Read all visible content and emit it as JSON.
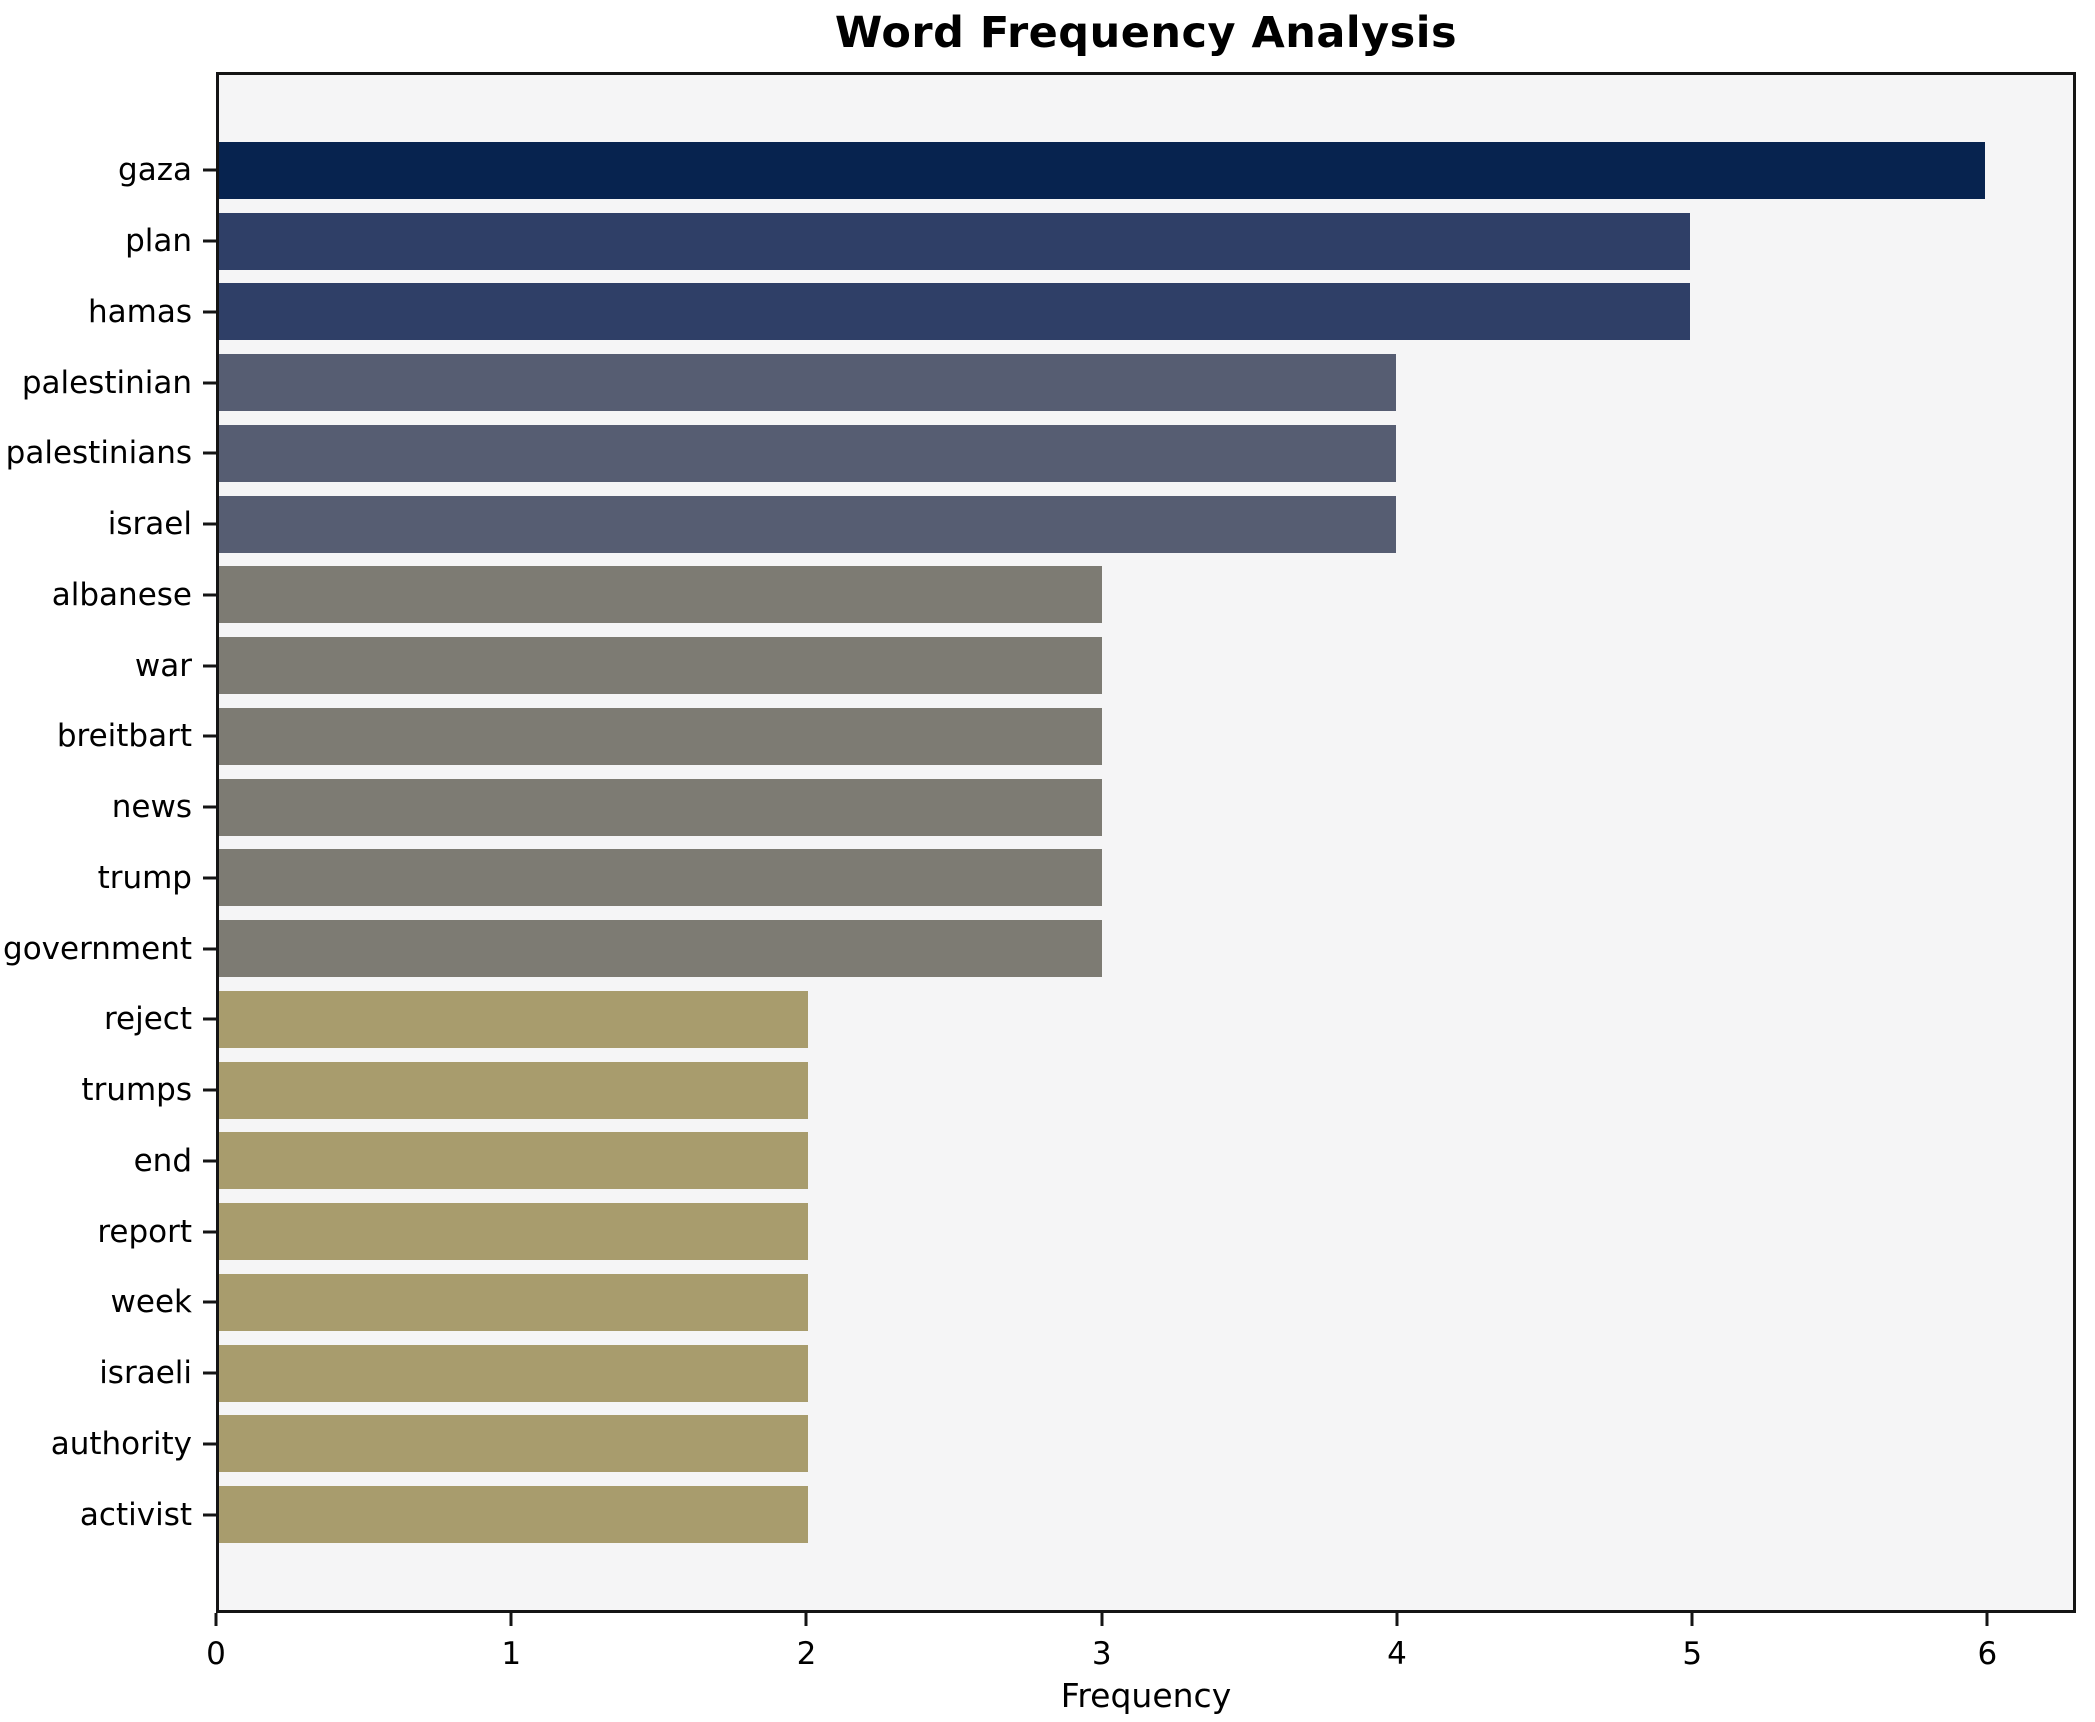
{
  "chart_data": {
    "type": "bar",
    "orientation": "horizontal",
    "title": "Word Frequency Analysis",
    "xlabel": "Frequency",
    "ylabel": "",
    "categories": [
      "gaza",
      "plan",
      "hamas",
      "palestinian",
      "palestinians",
      "israel",
      "albanese",
      "war",
      "breitbart",
      "news",
      "trump",
      "government",
      "reject",
      "trumps",
      "end",
      "report",
      "week",
      "israeli",
      "authority",
      "activist"
    ],
    "values": [
      6,
      5,
      5,
      4,
      4,
      4,
      3,
      3,
      3,
      3,
      3,
      3,
      2,
      2,
      2,
      2,
      2,
      2,
      2,
      2
    ],
    "x_ticks": [
      0,
      1,
      2,
      3,
      4,
      5,
      6
    ],
    "xlim": [
      0,
      6.3
    ],
    "grid": false,
    "legend": null,
    "bar_colors_by_value": {
      "6": "#07234f",
      "5": "#2f3f67",
      "4": "#565d72",
      "3": "#7d7b73",
      "2": "#a89c6d"
    },
    "plot_background": "#f5f5f6",
    "figure_background": "#ffffff",
    "spine_color": "#141414",
    "text_color": "#000000"
  }
}
